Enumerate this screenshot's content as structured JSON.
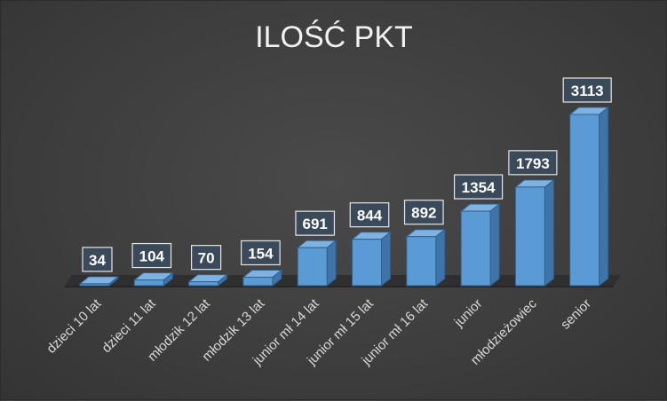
{
  "chart_data": {
    "type": "bar",
    "title": "ILOŚĆ PKT",
    "categories": [
      "dzieci 10 lat",
      "dzieci 11 lat",
      "młodzik 12 lat",
      "młodzik 13 lat",
      "junior mł 14 lat",
      "junior mł 15 lat",
      "junior mł 16 lat",
      "junior",
      "młodzieżowiec",
      "senior"
    ],
    "values": [
      34,
      104,
      70,
      154,
      691,
      844,
      892,
      1354,
      1793,
      3113
    ],
    "xlabel": "",
    "ylabel": "",
    "ylim": [
      0,
      3113
    ],
    "grid": false,
    "legend": "none",
    "data_labels": true,
    "three_d": true
  },
  "colors": {
    "background": "#404040",
    "bar_front": "#5b9bd5",
    "bar_side": "#3f74a8",
    "bar_top": "#7fb2e0",
    "floor": "#2f2f2f",
    "label_box": "#3b4a5a",
    "label_border": "#e6e6e6",
    "text": "#d9d9d9"
  }
}
